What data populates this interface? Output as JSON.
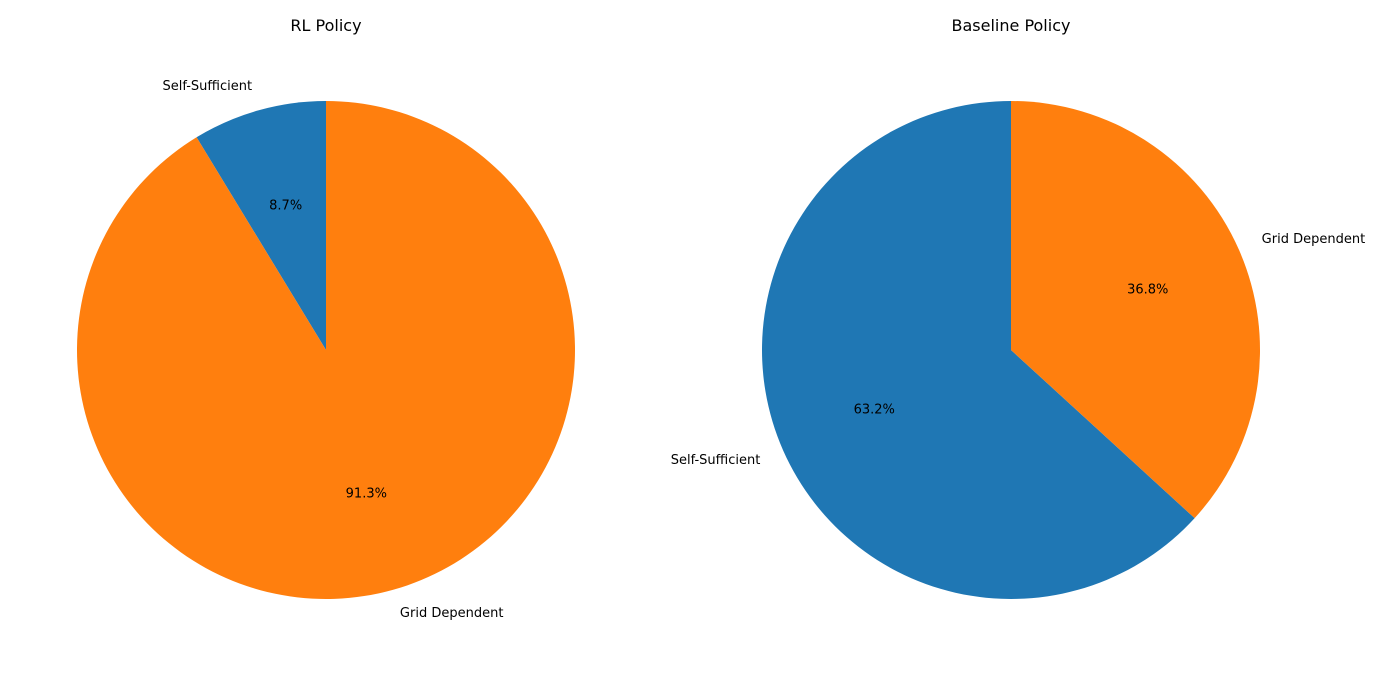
{
  "chart_data": [
    {
      "type": "pie",
      "title": "RL Policy",
      "labels": [
        "Self-Sufficient",
        "Grid Dependent"
      ],
      "values": [
        8.7,
        91.3
      ],
      "autopct": [
        "8.7%",
        "91.3%"
      ],
      "colors": [
        "#1f77b4",
        "#ff7f0e"
      ],
      "start_angle_deg": 90,
      "direction": "counterclockwise"
    },
    {
      "type": "pie",
      "title": "Baseline Policy",
      "labels": [
        "Self-Sufficient",
        "Grid Dependent"
      ],
      "values": [
        63.2,
        36.8
      ],
      "autopct": [
        "63.2%",
        "36.8%"
      ],
      "colors": [
        "#1f77b4",
        "#ff7f0e"
      ],
      "start_angle_deg": 90,
      "direction": "counterclockwise"
    }
  ]
}
